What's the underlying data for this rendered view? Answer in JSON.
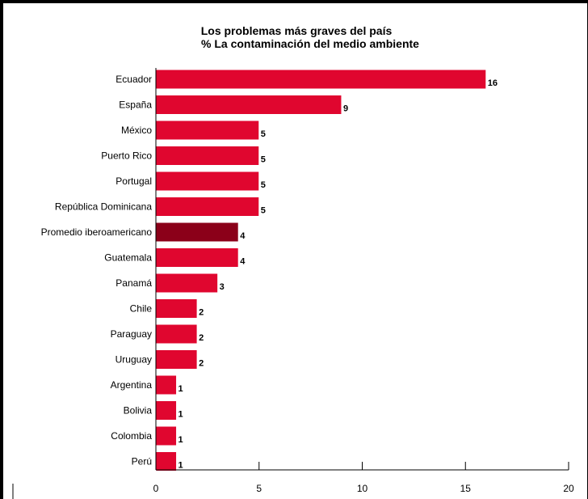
{
  "chart_data": {
    "type": "bar",
    "orientation": "horizontal",
    "title": "Los problemas más graves del país",
    "subtitle": "% La contaminación del medio ambiente",
    "categories": [
      "Ecuador",
      "España",
      "México",
      "Puerto Rico",
      "Portugal",
      "República Dominicana",
      "Promedio iberoamericano",
      "Guatemala",
      "Panamá",
      "Chile",
      "Paraguay",
      "Uruguay",
      "Argentina",
      "Bolivia",
      "Colombia",
      "Perú"
    ],
    "values": [
      16,
      9,
      5,
      5,
      5,
      5,
      4,
      4,
      3,
      2,
      2,
      2,
      1,
      1,
      1,
      1
    ],
    "value_labels": [
      "16",
      "9",
      "5",
      "5",
      "5",
      "5",
      "4",
      "4",
      "3",
      "2",
      "2",
      "2",
      "1",
      "1",
      "1",
      "1"
    ],
    "highlight_category": "Promedio iberoamericano",
    "xlim": [
      0,
      20
    ],
    "xticks": [
      0,
      5,
      10,
      15,
      20
    ],
    "xtick_labels": [
      "0",
      "5",
      "10",
      "15",
      "20"
    ],
    "grid": false,
    "legend": "none",
    "colors": {
      "bar": "#e0062f",
      "highlight_bar": "#8b0019",
      "bar_outline": "#ffffff",
      "axis": "#000000"
    }
  }
}
